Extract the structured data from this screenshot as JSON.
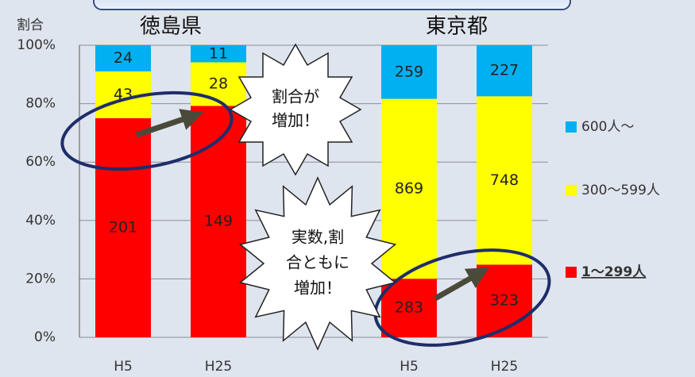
{
  "chart_data": {
    "type": "bar",
    "stacked": "percent",
    "y_label": "割合",
    "group_labels": [
      "徳島県",
      "東京都"
    ],
    "categories": [
      "H5",
      "H25",
      "H5",
      "H25"
    ],
    "series": [
      {
        "name": "1～299人",
        "color": "#ff0000",
        "values": [
          201,
          149,
          283,
          323
        ]
      },
      {
        "name": "300～599人",
        "color": "#ffff00",
        "values": [
          43,
          28,
          869,
          748
        ]
      },
      {
        "name": "600人～",
        "color": "#00b0f0",
        "values": [
          24,
          11,
          259,
          227
        ]
      }
    ],
    "ylim": [
      0,
      100
    ],
    "yticks": [
      {
        "value": 0,
        "label": "0%"
      },
      {
        "value": 20,
        "label": "20%"
      },
      {
        "value": 40,
        "label": "40%"
      },
      {
        "value": 60,
        "label": "60%"
      },
      {
        "value": 80,
        "label": "80%"
      },
      {
        "value": 100,
        "label": "100%"
      }
    ],
    "grid": true,
    "legend": "right",
    "annotations": [
      {
        "lines": [
          "割合が",
          "増加！"
        ]
      },
      {
        "lines": [
          "実数,割",
          "合ともに",
          "増加！"
        ]
      }
    ]
  }
}
